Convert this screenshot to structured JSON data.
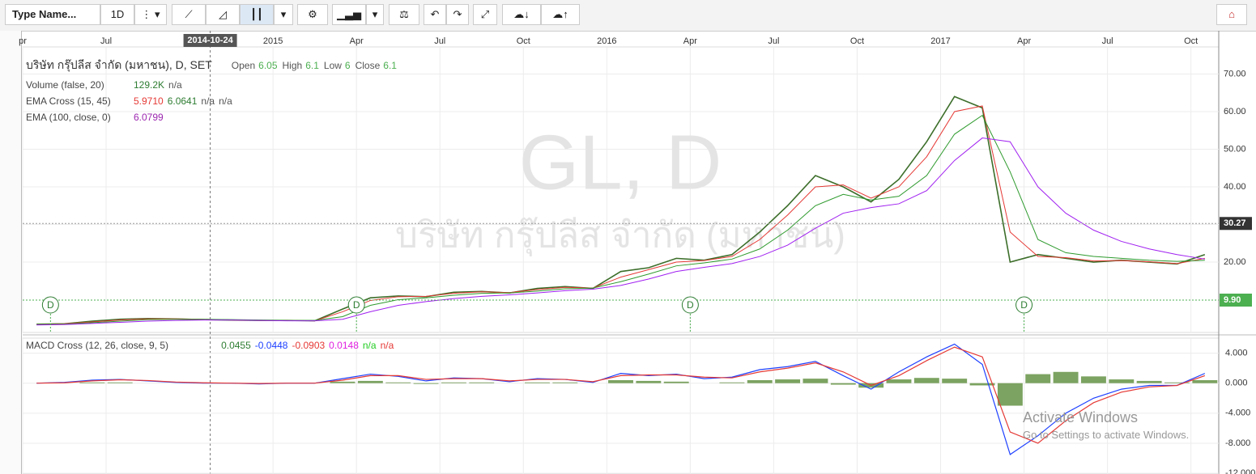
{
  "toolbar": {
    "symbol": "Type Name...",
    "interval": "1D"
  },
  "chart_data": [
    {
      "type": "line",
      "title": "บริษัท กรุ๊ปลีส จำกัด (มหาชน), D, SET",
      "watermark": "GL, D",
      "watermark_subtitle": "บริษัท กรุ๊ปลีส จำกัด (มหาชน)",
      "ohlc": [
        {
          "label": "Open",
          "value": 6.05
        },
        {
          "label": "High",
          "value": 6.1
        },
        {
          "label": "Low",
          "value": 6.0
        },
        {
          "label": "Close",
          "value": 6.1
        }
      ],
      "indicators": [
        {
          "label": "Volume (false, 20)",
          "values": [
            {
              "text": "129.2K",
              "color": "#2e7d32"
            },
            {
              "text": "n/a",
              "color": "#555555"
            }
          ]
        },
        {
          "label": "EMA Cross (15, 45)",
          "values": [
            {
              "text": "5.9710",
              "color": "#e53935"
            },
            {
              "text": "6.0641",
              "color": "#2e7d32"
            },
            {
              "text": "n/a",
              "color": "#555555"
            },
            {
              "text": "n/a",
              "color": "#555555"
            }
          ]
        },
        {
          "label": "EMA (100, close, 0)",
          "values": [
            {
              "text": "6.0799",
              "color": "#9c27b0"
            }
          ]
        }
      ],
      "x": [
        "2014-04",
        "2014-05",
        "2014-06",
        "2014-07",
        "2014-08",
        "2014-09",
        "2014-10",
        "2014-11",
        "2014-12",
        "2015-01",
        "2015-02",
        "2015-03",
        "2015-04",
        "2015-05",
        "2015-06",
        "2015-07",
        "2015-08",
        "2015-09",
        "2015-10",
        "2015-11",
        "2015-12",
        "2016-01",
        "2016-02",
        "2016-03",
        "2016-04",
        "2016-05",
        "2016-06",
        "2016-07",
        "2016-08",
        "2016-09",
        "2016-10",
        "2016-11",
        "2016-12",
        "2017-01",
        "2017-02",
        "2017-03",
        "2017-04",
        "2017-05",
        "2017-06",
        "2017-07",
        "2017-08",
        "2017-09",
        "2017-10"
      ],
      "series": [
        {
          "color": "#3c6e2a",
          "width": 1.6,
          "values": [
            3.5,
            3.6,
            4.3,
            4.8,
            5.0,
            4.9,
            4.7,
            4.6,
            4.5,
            4.5,
            4.4,
            7.5,
            10.5,
            11.0,
            10.8,
            12.0,
            12.2,
            11.8,
            13.0,
            13.5,
            13.0,
            17.5,
            18.5,
            21.0,
            20.5,
            22.0,
            28.0,
            35.0,
            43.0,
            40.0,
            36.0,
            42.0,
            52.0,
            64.0,
            61.0,
            20.0,
            22.0,
            21.0,
            20.0,
            20.5,
            20.0,
            19.5,
            22.0
          ]
        },
        {
          "color": "#e53935",
          "width": 1,
          "values": [
            3.5,
            3.6,
            4.1,
            4.6,
            4.9,
            4.9,
            4.8,
            4.6,
            4.5,
            4.5,
            4.4,
            6.8,
            9.8,
            10.8,
            10.9,
            11.7,
            12.1,
            11.9,
            12.7,
            13.3,
            13.1,
            16.0,
            18.0,
            20.0,
            20.4,
            21.5,
            26.0,
            32.5,
            40.0,
            40.5,
            37.0,
            40.0,
            48.0,
            60.0,
            61.5,
            28.0,
            21.5,
            21.2,
            20.3,
            20.4,
            20.1,
            19.6,
            21.0
          ]
        },
        {
          "color": "#2e9a2e",
          "width": 1,
          "values": [
            3.5,
            3.5,
            3.9,
            4.3,
            4.7,
            4.8,
            4.8,
            4.7,
            4.6,
            4.5,
            4.5,
            5.5,
            8.5,
            10.0,
            10.5,
            11.2,
            11.7,
            11.8,
            12.3,
            12.9,
            13.1,
            14.8,
            16.8,
            19.0,
            19.8,
            20.8,
            23.5,
            28.5,
            35.0,
            38.0,
            36.5,
            37.5,
            43.0,
            54.0,
            59.0,
            44.0,
            26.0,
            22.5,
            21.5,
            21.0,
            20.5,
            20.2,
            20.5
          ]
        },
        {
          "color": "#a020f0",
          "width": 1,
          "values": [
            3.3,
            3.4,
            3.7,
            4.0,
            4.3,
            4.5,
            4.6,
            4.6,
            4.5,
            4.4,
            4.4,
            4.8,
            6.8,
            8.5,
            9.5,
            10.3,
            10.9,
            11.3,
            11.8,
            12.4,
            12.8,
            13.8,
            15.5,
            17.5,
            18.6,
            19.6,
            21.5,
            24.5,
            29.0,
            33.0,
            34.5,
            35.5,
            39.0,
            47.0,
            53.0,
            52.0,
            40.0,
            33.0,
            28.5,
            25.5,
            23.5,
            22.0,
            20.8
          ]
        }
      ],
      "events": [
        {
          "x": "2014-05",
          "label": "D"
        },
        {
          "x": "2015-04",
          "label": "D"
        },
        {
          "x": "2016-04",
          "label": "D"
        },
        {
          "x": "2017-04",
          "label": "D"
        }
      ],
      "crosshair": "2014-10-24",
      "price_lines": [
        30.27,
        {
          "value": 9.9,
          "label": "9.90"
        }
      ],
      "xlim": [
        "2014-04",
        "2017-11"
      ],
      "xticks": [
        {
          "value": "2014-04",
          "label": "pr"
        },
        {
          "value": "2014-07",
          "label": "Jul"
        },
        {
          "value": "2015-01",
          "label": "2015"
        },
        {
          "value": "2015-04",
          "label": "Apr"
        },
        {
          "value": "2015-07",
          "label": "Jul"
        },
        {
          "value": "2015-10",
          "label": "Oct"
        },
        {
          "value": "2016-01",
          "label": "2016"
        },
        {
          "value": "2016-04",
          "label": "Apr"
        },
        {
          "value": "2016-07",
          "label": "Jul"
        },
        {
          "value": "2016-10",
          "label": "Oct"
        },
        {
          "value": "2017-01",
          "label": "2017"
        },
        {
          "value": "2017-04",
          "label": "Apr"
        },
        {
          "value": "2017-07",
          "label": "Jul"
        },
        {
          "value": "2017-10",
          "label": "Oct"
        }
      ],
      "ylim": [
        1.3,
        77.2
      ],
      "yticks": [
        {
          "value": 20,
          "label": "20.00"
        },
        {
          "value": 30,
          "label": "30.00"
        },
        {
          "value": 40,
          "label": "40.00"
        },
        {
          "value": 50,
          "label": "50.00"
        },
        {
          "value": 60,
          "label": "60.00"
        },
        {
          "value": 70,
          "label": "70.00"
        }
      ],
      "grid": true
    },
    {
      "type": "macd",
      "title": "MACD Cross (12, 26, close, 9, 5)",
      "legend_values": [
        {
          "text": "0.0455",
          "color": "#2e7d32"
        },
        {
          "text": "-0.0448",
          "color": "#1e40ff"
        },
        {
          "text": "-0.0903",
          "color": "#e53935"
        },
        {
          "text": "0.0148",
          "color": "#e020e0"
        },
        {
          "text": "n/a",
          "color": "#22cc22"
        },
        {
          "text": "n/a",
          "color": "#e53935"
        }
      ],
      "histogram": {
        "color": "#5b8c3a",
        "values": [
          0,
          0,
          0.1,
          0.1,
          0,
          0,
          0,
          0,
          0,
          0,
          0,
          0.2,
          0.3,
          0.1,
          -0.1,
          0.1,
          0.1,
          0,
          0.1,
          0.1,
          0,
          0.4,
          0.3,
          0.2,
          0,
          0.1,
          0.4,
          0.5,
          0.6,
          -0.2,
          -0.6,
          0.5,
          0.7,
          0.6,
          -0.3,
          -3.0,
          1.2,
          1.5,
          0.9,
          0.5,
          0.3,
          0.1,
          0.4
        ]
      },
      "series": [
        {
          "color": "#1e40ff",
          "values": [
            0,
            0.1,
            0.4,
            0.5,
            0.3,
            0.1,
            0,
            0,
            -0.1,
            0,
            0,
            0.6,
            1.2,
            0.9,
            0.3,
            0.7,
            0.6,
            0.2,
            0.6,
            0.5,
            0.1,
            1.3,
            1.0,
            1.2,
            0.6,
            0.8,
            1.8,
            2.2,
            2.9,
            1.0,
            -0.8,
            1.5,
            3.5,
            5.2,
            2.5,
            -9.5,
            -7.0,
            -4.0,
            -2.0,
            -0.8,
            -0.3,
            -0.3,
            1.3
          ]
        },
        {
          "color": "#e53935",
          "values": [
            0,
            0.05,
            0.3,
            0.45,
            0.35,
            0.15,
            0.05,
            0,
            -0.05,
            0,
            0,
            0.4,
            1.0,
            1.0,
            0.5,
            0.6,
            0.6,
            0.3,
            0.5,
            0.5,
            0.2,
            1.0,
            1.1,
            1.1,
            0.8,
            0.7,
            1.5,
            2.0,
            2.7,
            1.5,
            -0.3,
            1.0,
            3.0,
            4.8,
            3.5,
            -6.5,
            -8.0,
            -5.0,
            -2.6,
            -1.2,
            -0.5,
            -0.3,
            1.0
          ]
        }
      ],
      "ylim": [
        -12.1,
        6.0
      ],
      "yticks": [
        {
          "value": -12,
          "label": "-12.000"
        },
        {
          "value": -8,
          "label": "-8.000"
        },
        {
          "value": -4,
          "label": "-4.000"
        },
        {
          "value": 0,
          "label": "0.000"
        },
        {
          "value": 4,
          "label": "4.000"
        }
      ],
      "grid": true
    }
  ],
  "os_notice": {
    "title": "Activate Windows",
    "text": "Go to Settings to activate Windows."
  }
}
